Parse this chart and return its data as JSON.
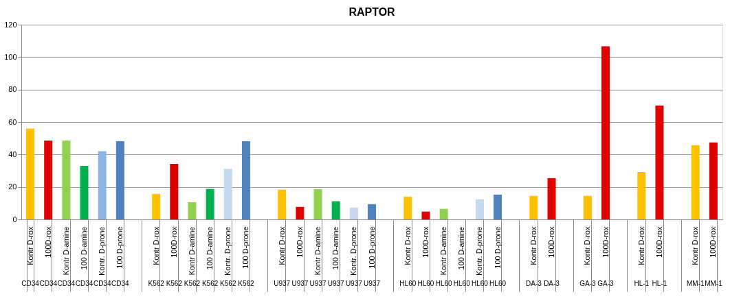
{
  "chart_data": {
    "type": "bar",
    "title": "RAPTOR",
    "categories": [
      "Kontr D-rox\nCD34",
      "100D-rox\nCD34",
      "Kontr D-amine\nCD34",
      "100 D-amine\nCD34",
      "Kontr. D-prone\nCD34",
      "100 D-prone\nCD34",
      null,
      "Kontr D-rox\nK562",
      "100D-rox\nK562",
      "Kontr D-amine\nK562",
      "100 D-amine\nK562",
      "Kontr. D-prone\nK562",
      "100 D-prone\nK562",
      null,
      "Kontr D-rox\nU937",
      "100D-rox\nU937",
      "Kontr D-amine\nU937",
      "100 D-amine\nU937",
      "Kontr. D-prone\nU937",
      "100 D-prone\nU937",
      null,
      "Kontr D-rox\nHL60",
      "100D-rox\nHL60",
      "Kontr D-amine\nHL60",
      "100 D-amine\nHL60",
      "Kontr. D-prone\nHL60",
      "100 D-prone\nHL60",
      null,
      "Kontr D-rox\nDA-3",
      "100D-rox\nDA-3",
      null,
      "Kontr D-rox\nGA-3",
      "100D-rox\nGA-3",
      null,
      "Kontr D-rox\nHL-1",
      "100D-rox\nHL-1",
      null,
      "Kontr D-rox\nMM-1",
      "100D-rox\nMM-1"
    ],
    "values": [
      56,
      48.6,
      48.6,
      33,
      42,
      48.2,
      null,
      15.7,
      34.2,
      10.6,
      18.8,
      31.2,
      48.2,
      null,
      18.3,
      7.7,
      18.7,
      11.2,
      7.3,
      9.4,
      null,
      14,
      4.8,
      6.5,
      null,
      12.4,
      15.3,
      null,
      14.5,
      25.4,
      null,
      14.5,
      106.7,
      null,
      29.2,
      70.1,
      null,
      45.7,
      47.4
    ],
    "colors": [
      "#ffc000",
      "#e00000",
      "#92d050",
      "#00b050",
      "#8eb4e3",
      "#4f81bd",
      null,
      "#ffc000",
      "#e00000",
      "#92d050",
      "#00b050",
      "#c6d9f1",
      "#4f81bd",
      null,
      "#ffc000",
      "#e00000",
      "#92d050",
      "#00b050",
      "#c6d9f1",
      "#4f81bd",
      null,
      "#ffc000",
      "#e00000",
      "#92d050",
      "#00b050",
      "#c6d9f1",
      "#4f81bd",
      null,
      "#ffc000",
      "#e00000",
      null,
      "#ffc000",
      "#e00000",
      null,
      "#ffc000",
      "#e00000",
      null,
      "#ffc000",
      "#e00000"
    ],
    "ylim": [
      0,
      120
    ],
    "yticks": [
      0,
      20,
      40,
      60,
      80,
      100,
      120
    ],
    "grid": "y"
  }
}
